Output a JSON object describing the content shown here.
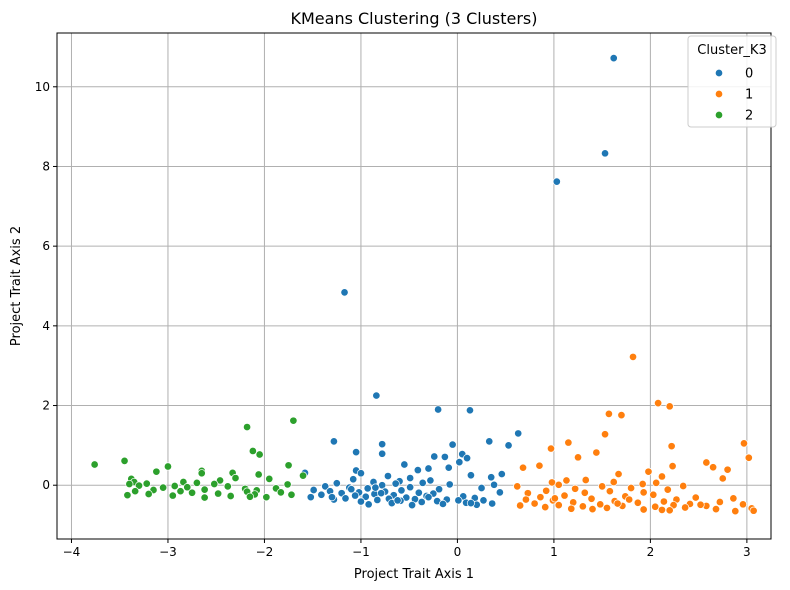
{
  "chart_data": {
    "type": "scatter",
    "title": "KMeans Clustering (3 Clusters)",
    "xlabel": "Project Trait Axis 1",
    "ylabel": "Project Trait Axis 2",
    "xlim": [
      -4.15,
      3.25
    ],
    "ylim": [
      -1.35,
      11.35
    ],
    "xticks": [
      -4,
      -3,
      -2,
      -1,
      0,
      1,
      2,
      3
    ],
    "yticks": [
      0,
      2,
      4,
      6,
      8,
      10
    ],
    "grid": true,
    "legend": {
      "title": "Cluster_K3",
      "placement": "top-right"
    },
    "series": [
      {
        "name": "0",
        "color": "#1f77b4",
        "points": [
          [
            1.62,
            10.72
          ],
          [
            1.53,
            8.33
          ],
          [
            1.03,
            7.62
          ],
          [
            -1.17,
            4.84
          ],
          [
            -0.84,
            2.25
          ],
          [
            -0.2,
            1.9
          ],
          [
            0.13,
            1.88
          ],
          [
            0.63,
            1.3
          ],
          [
            -1.28,
            1.1
          ],
          [
            0.33,
            1.1
          ],
          [
            -0.78,
            1.03
          ],
          [
            -0.05,
            1.02
          ],
          [
            0.53,
            1.0
          ],
          [
            -1.05,
            0.83
          ],
          [
            -0.78,
            0.79
          ],
          [
            0.05,
            0.78
          ],
          [
            -0.24,
            0.72
          ],
          [
            -0.13,
            0.71
          ],
          [
            0.1,
            0.68
          ],
          [
            0.02,
            0.58
          ],
          [
            -0.55,
            0.52
          ],
          [
            -0.09,
            0.44
          ],
          [
            -0.3,
            0.42
          ],
          [
            -0.41,
            0.38
          ],
          [
            -1.05,
            0.37
          ],
          [
            -1.58,
            0.31
          ],
          [
            -1.0,
            0.3
          ],
          [
            0.46,
            0.28
          ],
          [
            0.14,
            0.25
          ],
          [
            -0.72,
            0.23
          ],
          [
            0.35,
            0.2
          ],
          [
            -0.49,
            0.18
          ],
          [
            -1.08,
            0.15
          ],
          [
            -0.28,
            0.12
          ],
          [
            -0.6,
            0.1
          ],
          [
            -0.87,
            0.08
          ],
          [
            -0.36,
            0.06
          ],
          [
            -1.25,
            0.05
          ],
          [
            -0.64,
            0.04
          ],
          [
            -0.08,
            0.02
          ],
          [
            0.38,
            0.01
          ],
          [
            -0.78,
            0.0
          ],
          [
            -1.37,
            -0.03
          ],
          [
            -0.49,
            -0.05
          ],
          [
            -1.12,
            -0.06
          ],
          [
            0.25,
            -0.07
          ],
          [
            -0.93,
            -0.08
          ],
          [
            -0.19,
            -0.1
          ],
          [
            -1.49,
            -0.12
          ],
          [
            -0.58,
            -0.13
          ],
          [
            -1.32,
            -0.15
          ],
          [
            -0.75,
            -0.16
          ],
          [
            -1.02,
            -0.18
          ],
          [
            0.44,
            -0.18
          ],
          [
            -0.4,
            -0.19
          ],
          [
            -1.2,
            -0.2
          ],
          [
            -0.25,
            -0.21
          ],
          [
            -0.86,
            -0.22
          ],
          [
            -1.41,
            -0.24
          ],
          [
            -0.66,
            -0.25
          ],
          [
            -1.06,
            -0.26
          ],
          [
            -0.32,
            -0.27
          ],
          [
            0.06,
            -0.28
          ],
          [
            -0.95,
            -0.29
          ],
          [
            -1.52,
            -0.3
          ],
          [
            -0.53,
            -0.31
          ],
          [
            0.18,
            -0.32
          ],
          [
            -1.16,
            -0.33
          ],
          [
            -0.71,
            -0.34
          ],
          [
            -0.44,
            -0.35
          ],
          [
            -0.11,
            -0.36
          ],
          [
            -1.28,
            -0.36
          ],
          [
            -0.83,
            -0.37
          ],
          [
            0.27,
            -0.38
          ],
          [
            -0.59,
            -0.39
          ],
          [
            -0.21,
            -0.4
          ],
          [
            -1.0,
            -0.41
          ],
          [
            -0.37,
            -0.42
          ],
          [
            0.09,
            -0.44
          ],
          [
            -0.68,
            -0.45
          ],
          [
            0.36,
            -0.46
          ],
          [
            -0.15,
            -0.47
          ],
          [
            -0.92,
            -0.48
          ],
          [
            0.2,
            -0.49
          ],
          [
            -0.47,
            -0.5
          ],
          [
            -0.79,
            -0.2
          ],
          [
            -1.1,
            -0.1
          ],
          [
            -0.62,
            -0.38
          ],
          [
            -0.3,
            -0.3
          ],
          [
            0.01,
            -0.38
          ],
          [
            0.14,
            -0.45
          ],
          [
            -1.3,
            -0.3
          ],
          [
            -0.85,
            -0.06
          ]
        ]
      },
      {
        "name": "1",
        "color": "#ff7f0e",
        "points": [
          [
            1.82,
            3.22
          ],
          [
            2.08,
            2.06
          ],
          [
            2.2,
            1.98
          ],
          [
            1.57,
            1.79
          ],
          [
            1.7,
            1.76
          ],
          [
            1.53,
            1.28
          ],
          [
            1.15,
            1.07
          ],
          [
            2.97,
            1.05
          ],
          [
            2.22,
            0.98
          ],
          [
            0.97,
            0.92
          ],
          [
            1.44,
            0.82
          ],
          [
            1.25,
            0.7
          ],
          [
            3.02,
            0.69
          ],
          [
            2.58,
            0.57
          ],
          [
            2.23,
            0.48
          ],
          [
            0.68,
            0.44
          ],
          [
            2.65,
            0.45
          ],
          [
            0.85,
            0.49
          ],
          [
            2.8,
            0.39
          ],
          [
            1.98,
            0.34
          ],
          [
            2.12,
            0.22
          ],
          [
            1.67,
            0.28
          ],
          [
            2.75,
            0.17
          ],
          [
            1.13,
            0.12
          ],
          [
            1.33,
            0.13
          ],
          [
            0.98,
            0.07
          ],
          [
            1.62,
            0.08
          ],
          [
            2.06,
            0.06
          ],
          [
            1.92,
            0.03
          ],
          [
            1.05,
            0.01
          ],
          [
            2.34,
            -0.02
          ],
          [
            0.62,
            -0.03
          ],
          [
            1.5,
            -0.03
          ],
          [
            1.8,
            -0.07
          ],
          [
            1.22,
            -0.09
          ],
          [
            2.18,
            -0.11
          ],
          [
            0.92,
            -0.14
          ],
          [
            1.58,
            -0.15
          ],
          [
            1.93,
            -0.18
          ],
          [
            1.32,
            -0.19
          ],
          [
            0.73,
            -0.2
          ],
          [
            2.03,
            -0.24
          ],
          [
            1.11,
            -0.26
          ],
          [
            1.74,
            -0.28
          ],
          [
            0.86,
            -0.3
          ],
          [
            2.47,
            -0.31
          ],
          [
            2.86,
            -0.33
          ],
          [
            1.39,
            -0.34
          ],
          [
            2.27,
            -0.36
          ],
          [
            0.99,
            -0.38
          ],
          [
            1.63,
            -0.4
          ],
          [
            2.14,
            -0.41
          ],
          [
            2.72,
            -0.42
          ],
          [
            1.2,
            -0.43
          ],
          [
            1.87,
            -0.44
          ],
          [
            0.8,
            -0.46
          ],
          [
            2.41,
            -0.47
          ],
          [
            1.48,
            -0.48
          ],
          [
            2.96,
            -0.48
          ],
          [
            1.05,
            -0.5
          ],
          [
            2.24,
            -0.5
          ],
          [
            0.65,
            -0.51
          ],
          [
            1.71,
            -0.52
          ],
          [
            2.58,
            -0.52
          ],
          [
            1.3,
            -0.53
          ],
          [
            2.05,
            -0.54
          ],
          [
            0.91,
            -0.55
          ],
          [
            2.36,
            -0.56
          ],
          [
            1.55,
            -0.57
          ],
          [
            3.05,
            -0.58
          ],
          [
            1.18,
            -0.59
          ],
          [
            2.68,
            -0.6
          ],
          [
            1.93,
            -0.61
          ],
          [
            2.12,
            -0.62
          ],
          [
            2.88,
            -0.65
          ],
          [
            2.2,
            -0.63
          ],
          [
            1.4,
            -0.6
          ],
          [
            1.66,
            -0.46
          ],
          [
            1.01,
            -0.33
          ],
          [
            2.52,
            -0.49
          ],
          [
            3.07,
            -0.64
          ],
          [
            1.78,
            -0.36
          ],
          [
            0.71,
            -0.36
          ]
        ]
      },
      {
        "name": "2",
        "color": "#2ca02c",
        "points": [
          [
            -3.76,
            0.52
          ],
          [
            -3.45,
            0.61
          ],
          [
            -2.18,
            1.46
          ],
          [
            -1.7,
            1.62
          ],
          [
            -2.12,
            0.86
          ],
          [
            -2.05,
            0.77
          ],
          [
            -1.75,
            0.5
          ],
          [
            -3.0,
            0.47
          ],
          [
            -2.65,
            0.36
          ],
          [
            -3.12,
            0.34
          ],
          [
            -2.65,
            0.3
          ],
          [
            -2.33,
            0.31
          ],
          [
            -1.6,
            0.24
          ],
          [
            -2.06,
            0.27
          ],
          [
            -2.3,
            0.18
          ],
          [
            -1.95,
            0.16
          ],
          [
            -3.38,
            0.16
          ],
          [
            -2.46,
            0.12
          ],
          [
            -3.35,
            0.08
          ],
          [
            -2.84,
            0.08
          ],
          [
            -2.7,
            0.06
          ],
          [
            -3.22,
            0.04
          ],
          [
            -3.4,
            0.03
          ],
          [
            -2.52,
            0.03
          ],
          [
            -1.76,
            0.02
          ],
          [
            -3.3,
            -0.01
          ],
          [
            -2.93,
            -0.02
          ],
          [
            -2.38,
            -0.03
          ],
          [
            -2.8,
            -0.05
          ],
          [
            -3.05,
            -0.06
          ],
          [
            -1.88,
            -0.08
          ],
          [
            -2.2,
            -0.09
          ],
          [
            -2.62,
            -0.11
          ],
          [
            -3.15,
            -0.12
          ],
          [
            -2.08,
            -0.13
          ],
          [
            -3.34,
            -0.15
          ],
          [
            -2.18,
            -0.16
          ],
          [
            -1.83,
            -0.18
          ],
          [
            -2.75,
            -0.19
          ],
          [
            -2.48,
            -0.21
          ],
          [
            -3.2,
            -0.22
          ],
          [
            -2.1,
            -0.23
          ],
          [
            -1.72,
            -0.24
          ],
          [
            -2.95,
            -0.26
          ],
          [
            -2.35,
            -0.27
          ],
          [
            -3.42,
            -0.25
          ],
          [
            -2.15,
            -0.29
          ],
          [
            -1.98,
            -0.3
          ],
          [
            -2.62,
            -0.31
          ],
          [
            -2.87,
            -0.15
          ]
        ]
      }
    ]
  }
}
